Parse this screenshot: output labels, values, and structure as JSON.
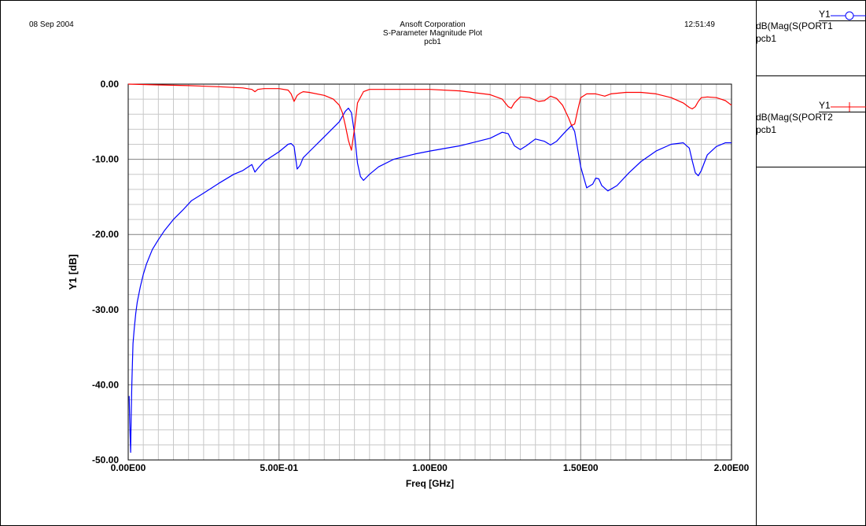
{
  "header": {
    "date": "08 Sep 2004",
    "time": "12:51:49",
    "company": "Ansoft Corporation",
    "plot_title": "S-Parameter Magnitude Plot",
    "project": "pcb1"
  },
  "legend": [
    {
      "axis": "Y1",
      "expr": "dB(Mag(S(PORT1",
      "source": "pcb1",
      "color": "#0000ff",
      "marker": "circle"
    },
    {
      "axis": "Y1",
      "expr": "dB(Mag(S(PORT2",
      "source": "pcb1",
      "color": "#ff0000",
      "marker": "cross"
    }
  ],
  "chart_data": {
    "type": "line",
    "xlabel": "Freq [GHz]",
    "ylabel": "Y1 [dB]",
    "xlim": [
      0,
      2.0
    ],
    "ylim": [
      -50,
      0
    ],
    "xticks": [
      0,
      0.5,
      1.0,
      1.5,
      2.0
    ],
    "xtick_labels": [
      "0.00E00",
      "5.00E-01",
      "1.00E00",
      "1.50E00",
      "2.00E00"
    ],
    "yticks": [
      0,
      -10,
      -20,
      -30,
      -40,
      -50
    ],
    "ytick_labels": [
      "0.00",
      "-10.00",
      "-20.00",
      "-30.00",
      "-40.00",
      "-50.00"
    ],
    "grid": true,
    "series": [
      {
        "name": "dB(Mag(S(PORT1",
        "color": "#0000ff",
        "x": [
          0.003,
          0.005,
          0.008,
          0.01,
          0.012,
          0.014,
          0.016,
          0.02,
          0.025,
          0.03,
          0.035,
          0.04,
          0.05,
          0.06,
          0.07,
          0.08,
          0.1,
          0.12,
          0.15,
          0.18,
          0.21,
          0.25,
          0.3,
          0.35,
          0.38,
          0.41,
          0.42,
          0.43,
          0.45,
          0.5,
          0.53,
          0.54,
          0.55,
          0.56,
          0.57,
          0.58,
          0.6,
          0.65,
          0.7,
          0.72,
          0.73,
          0.74,
          0.75,
          0.76,
          0.77,
          0.78,
          0.79,
          0.8,
          0.83,
          0.88,
          0.95,
          1.0,
          1.1,
          1.2,
          1.24,
          1.26,
          1.28,
          1.3,
          1.32,
          1.35,
          1.38,
          1.4,
          1.42,
          1.45,
          1.47,
          1.48,
          1.5,
          1.52,
          1.54,
          1.55,
          1.56,
          1.57,
          1.59,
          1.62,
          1.66,
          1.7,
          1.75,
          1.8,
          1.84,
          1.86,
          1.87,
          1.88,
          1.89,
          1.9,
          1.92,
          1.95,
          1.98,
          2.0
        ],
        "y": [
          -41.5,
          -45,
          -49,
          -44,
          -40,
          -37,
          -34.5,
          -32.5,
          -30.5,
          -29,
          -28,
          -27,
          -25.3,
          -24,
          -23,
          -22,
          -20.7,
          -19.5,
          -18,
          -16.8,
          -15.5,
          -14.5,
          -13.2,
          -12,
          -11.5,
          -10.7,
          -11.7,
          -11.2,
          -10.3,
          -9,
          -8,
          -7.9,
          -8.3,
          -11.3,
          -10.8,
          -9.8,
          -9,
          -7,
          -5,
          -3.6,
          -3.2,
          -3.8,
          -6.5,
          -10.5,
          -12.3,
          -12.8,
          -12.4,
          -12,
          -11,
          -10,
          -9.3,
          -8.9,
          -8.2,
          -7.2,
          -6.4,
          -6.6,
          -8.2,
          -8.7,
          -8.2,
          -7.3,
          -7.6,
          -8.1,
          -7.6,
          -6.3,
          -5.5,
          -6.3,
          -11,
          -13.8,
          -13.3,
          -12.5,
          -12.6,
          -13.5,
          -14.2,
          -13.5,
          -11.8,
          -10.3,
          -8.9,
          -8,
          -7.8,
          -8.5,
          -10.2,
          -11.8,
          -12.2,
          -11.5,
          -9.4,
          -8.3,
          -7.8,
          -7.8
        ]
      },
      {
        "name": "dB(Mag(S(PORT2",
        "color": "#ff0000",
        "x": [
          0,
          0.05,
          0.1,
          0.2,
          0.3,
          0.38,
          0.41,
          0.42,
          0.43,
          0.45,
          0.5,
          0.53,
          0.54,
          0.55,
          0.56,
          0.57,
          0.58,
          0.6,
          0.65,
          0.68,
          0.7,
          0.71,
          0.72,
          0.73,
          0.74,
          0.75,
          0.76,
          0.78,
          0.8,
          0.9,
          1.0,
          1.1,
          1.2,
          1.24,
          1.26,
          1.27,
          1.28,
          1.3,
          1.33,
          1.36,
          1.38,
          1.4,
          1.42,
          1.44,
          1.46,
          1.47,
          1.48,
          1.49,
          1.5,
          1.52,
          1.55,
          1.58,
          1.6,
          1.65,
          1.7,
          1.75,
          1.8,
          1.84,
          1.86,
          1.87,
          1.88,
          1.89,
          1.9,
          1.92,
          1.95,
          1.98,
          2.0
        ],
        "y": [
          0,
          -0.05,
          -0.1,
          -0.2,
          -0.35,
          -0.5,
          -0.7,
          -1,
          -0.7,
          -0.6,
          -0.6,
          -0.8,
          -1.3,
          -2.3,
          -1.5,
          -1.2,
          -1,
          -1.1,
          -1.5,
          -2,
          -2.8,
          -3.8,
          -5.5,
          -7.5,
          -8.8,
          -6,
          -2.5,
          -1,
          -0.7,
          -0.7,
          -0.7,
          -0.9,
          -1.4,
          -2,
          -3,
          -3.2,
          -2.5,
          -1.7,
          -1.8,
          -2.3,
          -2.2,
          -1.6,
          -1.9,
          -2.8,
          -4.5,
          -5.5,
          -5.3,
          -3.5,
          -1.8,
          -1.3,
          -1.3,
          -1.6,
          -1.3,
          -1.1,
          -1.1,
          -1.3,
          -1.8,
          -2.5,
          -3.1,
          -3.3,
          -3,
          -2.3,
          -1.8,
          -1.7,
          -1.8,
          -2.2,
          -2.8
        ]
      }
    ]
  }
}
